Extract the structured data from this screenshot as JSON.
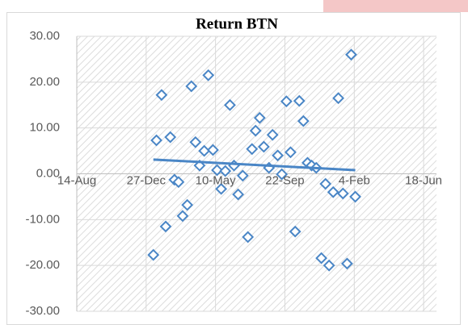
{
  "chart_data": {
    "type": "scatter",
    "title": "Return BTN",
    "xlim": [
      0,
      700
    ],
    "xticks": [
      {
        "value": 0,
        "label": "14-Aug"
      },
      {
        "value": 135,
        "label": "27-Dec"
      },
      {
        "value": 270,
        "label": "10-May"
      },
      {
        "value": 405,
        "label": "22-Sep"
      },
      {
        "value": 540,
        "label": "4-Feb"
      },
      {
        "value": 675,
        "label": "18-Jun"
      }
    ],
    "ylim": [
      -30,
      30
    ],
    "yticks": [
      {
        "value": -30,
        "label": "-30.00"
      },
      {
        "value": -20,
        "label": "-20.00"
      },
      {
        "value": -10,
        "label": "-10.00"
      },
      {
        "value": 0,
        "label": "0.00"
      },
      {
        "value": 10,
        "label": "10.00"
      },
      {
        "value": 20,
        "label": "20.00"
      },
      {
        "value": 30,
        "label": "30.00"
      }
    ],
    "grid": true,
    "color": "#4a86c6",
    "x": [
      149,
      155,
      165,
      173,
      182,
      190,
      198,
      206,
      215,
      223,
      231,
      239,
      248,
      256,
      265,
      273,
      281,
      289,
      298,
      306,
      314,
      323,
      333,
      341,
      348,
      356,
      364,
      374,
      381,
      391,
      399,
      408,
      416,
      425,
      433,
      441,
      449,
      457,
      466,
      476,
      484,
      491,
      499,
      509,
      518,
      526,
      534,
      542
    ],
    "values": [
      -17.7,
      7.3,
      17.2,
      -11.5,
      8.0,
      -1.3,
      -1.8,
      -9.2,
      -6.8,
      19.1,
      6.9,
      1.8,
      5.0,
      21.5,
      5.2,
      0.8,
      -3.3,
      0.6,
      15.0,
      1.8,
      -4.5,
      -0.4,
      -13.8,
      5.4,
      9.4,
      12.2,
      5.9,
      1.3,
      8.5,
      4.0,
      -0.1,
      15.8,
      4.7,
      -12.6,
      15.9,
      11.5,
      2.4,
      1.8,
      1.3,
      -18.4,
      -2.2,
      -20.0,
      -4.0,
      16.5,
      -4.3,
      -19.6,
      26.0,
      -5.0
    ],
    "trendline": {
      "x": [
        149,
        542
      ],
      "values": [
        3.1,
        0.8
      ]
    }
  }
}
